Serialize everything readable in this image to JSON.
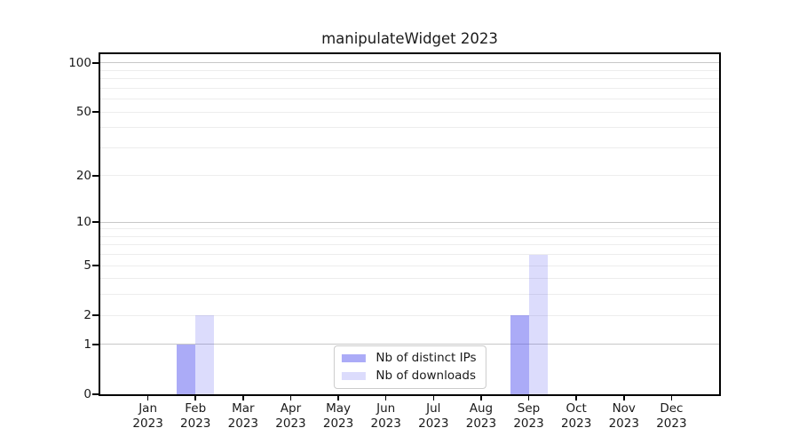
{
  "chart_data": {
    "type": "bar",
    "title": "manipulateWidget 2023",
    "categories": [
      "Jan",
      "Feb",
      "Mar",
      "Apr",
      "May",
      "Jun",
      "Jul",
      "Aug",
      "Sep",
      "Oct",
      "Nov",
      "Dec"
    ],
    "category_year": "2023",
    "series": [
      {
        "name": "Nb of distinct IPs",
        "color": "rgba(68,68,238,0.45)",
        "values": [
          0,
          1,
          0,
          0,
          0,
          0,
          0,
          0,
          2,
          0,
          0,
          0
        ]
      },
      {
        "name": "Nb of downloads",
        "color": "rgba(68,68,238,0.19)",
        "values": [
          0,
          2,
          0,
          0,
          0,
          0,
          0,
          0,
          6,
          0,
          0,
          0
        ]
      }
    ],
    "y_axis": {
      "scale": "log1p",
      "tick_values": [
        0,
        1,
        2,
        5,
        10,
        20,
        50,
        100
      ],
      "major_gridlines": [
        1,
        10,
        100
      ],
      "minor_gridlines": [
        2,
        3,
        4,
        5,
        6,
        7,
        8,
        9,
        20,
        30,
        40,
        50,
        60,
        70,
        80,
        90
      ],
      "range_top": 113.2
    },
    "legend_position": "lower-center",
    "grid_on": true,
    "colors": {
      "major_grid": "#c8c8c8",
      "minor_grid": "#ededed",
      "spine": "#000000",
      "text": "#1a1a1a",
      "background": "#ffffff"
    }
  }
}
